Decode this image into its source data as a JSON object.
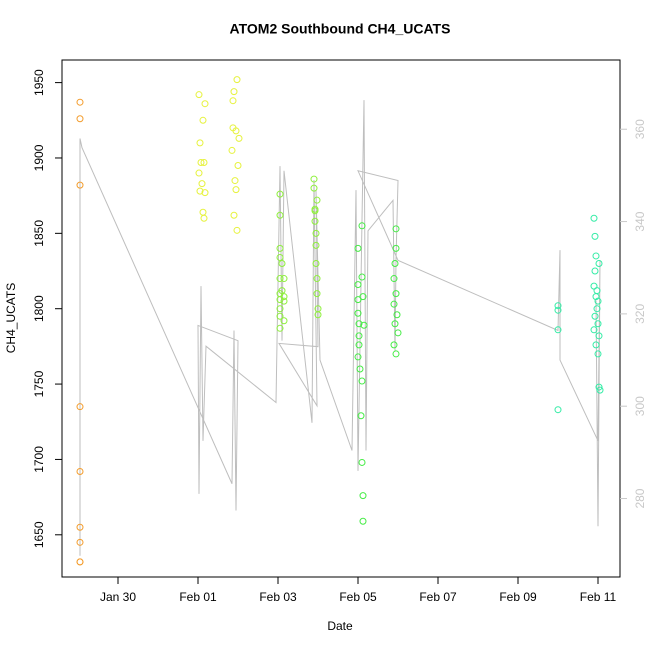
{
  "chart_data": {
    "type": "scatter",
    "title": "ATOM2 Southbound CH4_UCATS",
    "xlabel": "Date",
    "ylabel": "CH4_UCATS",
    "xlim": [
      -1.4,
      12.55
    ],
    "ylim": [
      1622,
      1965
    ],
    "y2lim": [
      263,
      375
    ],
    "xticks": [
      {
        "value": 0,
        "label": "Jan 30"
      },
      {
        "value": 2,
        "label": "Feb 01"
      },
      {
        "value": 4,
        "label": "Feb 03"
      },
      {
        "value": 6,
        "label": "Feb 05"
      },
      {
        "value": 8,
        "label": "Feb 07"
      },
      {
        "value": 10,
        "label": "Feb 09"
      },
      {
        "value": 12,
        "label": "Feb 11"
      }
    ],
    "yticks": [
      1650,
      1700,
      1750,
      1800,
      1850,
      1900,
      1950
    ],
    "y2ticks": [
      280,
      300,
      320,
      340,
      360
    ],
    "y2tick_color": "#c8c8c8",
    "series": [
      {
        "type": "line",
        "axis": "y2",
        "color": "#bebebe",
        "x": [
          -0.95,
          -0.95,
          -0.9,
          2.85,
          2.9,
          2.95,
          3.0,
          2.0,
          2.025,
          2.075,
          2.125,
          2.2,
          3.95,
          4.05,
          4.1,
          4.15,
          4.85,
          4.9,
          4.975,
          4.025,
          5.0,
          4.95,
          5.05,
          5.85,
          5.95,
          6.0,
          6.1,
          6.15,
          6.2,
          6.25,
          6.875,
          6.925,
          6.95,
          7.0,
          6.0,
          7.0,
          11.0,
          11.05,
          11.05,
          12.0,
          12.05,
          12.0,
          11.95
        ],
        "values": [
          267.6,
          358,
          356,
          283.2,
          316.4,
          277.4,
          314.2,
          317.5,
          281,
          326,
          292.5,
          313,
          300.8,
          352,
          314.2,
          351,
          296.4,
          349,
          300.1,
          313.6,
          312.9,
          346.8,
          310,
          290.4,
          346.8,
          286,
          340.3,
          366.3,
          290.4,
          338,
          344.6,
          312,
          331.6,
          348.9,
          351,
          331.6,
          316.4,
          333.8,
          310,
          292.5,
          331.6,
          274,
          322.9
        ]
      },
      {
        "color": "#f39c2c",
        "x": [
          -0.95,
          -0.95,
          -0.95,
          -0.95,
          -0.95,
          -0.95,
          -0.95,
          -0.95,
          -0.95
        ],
        "values": [
          1937,
          1926,
          1882,
          1735,
          1692,
          1655,
          1645,
          1632,
          1632
        ]
      },
      {
        "color": "#e6f23c",
        "x": [
          2.025,
          2.125,
          2.175,
          2.05,
          2.075,
          2.15,
          2.025,
          2.1,
          2.175,
          2.125,
          2.15,
          2.05,
          2.9,
          2.975,
          2.875,
          2.95,
          2.85,
          3.0,
          2.925,
          2.95,
          2.9,
          2.975,
          2.875,
          3.025
        ],
        "values": [
          1942,
          1925,
          1936,
          1910,
          1897,
          1897,
          1890,
          1883,
          1877,
          1864,
          1860,
          1878,
          1944,
          1952,
          1938,
          1918,
          1905,
          1895,
          1885,
          1879,
          1862,
          1852,
          1920,
          1913
        ]
      },
      {
        "color": "#8ef03c",
        "x": [
          4.05,
          4.05,
          4.05,
          4.05,
          4.05,
          4.05,
          4.05,
          4.05,
          4.05,
          4.05,
          4.1,
          4.1,
          4.15,
          4.15,
          4.15,
          4.15,
          4.9,
          4.9,
          4.925,
          4.925,
          4.95,
          4.95,
          4.95,
          4.975,
          4.975,
          5.0,
          5.0,
          4.925,
          4.975
        ],
        "values": [
          1876,
          1862,
          1840,
          1834,
          1820,
          1810,
          1806,
          1800,
          1795,
          1787,
          1830,
          1812,
          1820,
          1808,
          1805,
          1792,
          1886,
          1880,
          1866,
          1858,
          1850,
          1842,
          1830,
          1820,
          1810,
          1800,
          1796,
          1865,
          1872
        ]
      },
      {
        "color": "#44ec44",
        "x": [
          6.0,
          6.0,
          6.0,
          6.0,
          6.025,
          6.025,
          6.025,
          6.0,
          6.05,
          6.1,
          6.075,
          6.1,
          6.1,
          6.125,
          6.15,
          6.1,
          6.125,
          6.125,
          6.95,
          6.95,
          6.925,
          6.9,
          6.95,
          6.9,
          6.975,
          6.925,
          7.0,
          6.9,
          6.95
        ],
        "values": [
          1840,
          1816,
          1806,
          1797,
          1790,
          1782,
          1776,
          1768,
          1760,
          1752,
          1729,
          1855,
          1821,
          1808,
          1789,
          1698,
          1676,
          1659,
          1853,
          1840,
          1830,
          1820,
          1810,
          1803,
          1796,
          1790,
          1784,
          1776,
          1770
        ]
      },
      {
        "color": "#34eca6",
        "x": [
          11.0,
          11.0,
          11.0,
          11.0,
          11.9,
          11.925,
          11.95,
          11.925,
          11.9,
          11.95,
          11.975,
          11.925,
          12.0,
          11.9,
          12.025,
          11.95,
          12.0,
          12.025,
          12.05,
          12.0,
          11.975,
          12.025
        ],
        "values": [
          1802,
          1799,
          1786,
          1733,
          1860,
          1848,
          1835,
          1825,
          1815,
          1808,
          1800,
          1795,
          1790,
          1786,
          1782,
          1776,
          1770,
          1748,
          1746,
          1805,
          1812,
          1830
        ]
      }
    ]
  }
}
